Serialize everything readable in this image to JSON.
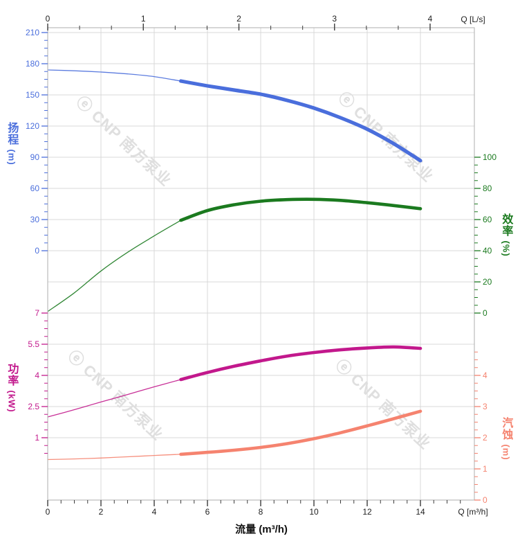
{
  "axes": {
    "top": {
      "title": "Q [L/s]",
      "tick_labels": [
        "0",
        "1",
        "2",
        "3",
        "4"
      ],
      "color": "#222222"
    },
    "bottom": {
      "title": "Q [m³/h]",
      "flow_label": "流量 (m³/h)",
      "tick_labels": [
        "0",
        "2",
        "4",
        "6",
        "8",
        "10",
        "12",
        "14"
      ],
      "color": "#222222"
    },
    "head": {
      "name": "扬程",
      "unit": "(m)",
      "tick_labels": [
        "210",
        "180",
        "150",
        "120",
        "90",
        "60",
        "30",
        "0"
      ],
      "color": "#4a6edc"
    },
    "power": {
      "name": "功率",
      "unit": "(kW)",
      "tick_labels": [
        "7",
        "5.5",
        "4",
        "2.5",
        "1"
      ],
      "color": "#c2188c"
    },
    "efficiency": {
      "name": "效率",
      "unit": "(%)",
      "tick_labels": [
        "100",
        "80",
        "60",
        "40",
        "20",
        "0"
      ],
      "color": "#1b7a1f"
    },
    "npsh": {
      "name": "汽蚀",
      "unit": "(m)",
      "tick_labels": [
        "4",
        "3",
        "2",
        "1",
        "0"
      ],
      "color": "#f5836f"
    }
  },
  "watermark": {
    "logo": "ⓔ",
    "brand": "CNP",
    "cn": "南方泵业",
    "color": "#dfdfdf"
  },
  "colors": {
    "grid": "#d9d9d9",
    "border": "#bbbbbb",
    "axis_tick": "#3a3a3a"
  },
  "chart_data": {
    "type": "line",
    "x_label": "流量 (m³/h)",
    "x2_label": "Q [L/s]",
    "x_range": [
      0,
      16
    ],
    "x2_range": [
      0,
      4.46
    ],
    "grid": true,
    "rated_flow_range_m3h": [
      5,
      14
    ],
    "series": [
      {
        "id": "head",
        "label": "扬程",
        "unit": "m",
        "color": "#4a6edc",
        "y_ticks": [
          0,
          30,
          60,
          90,
          120,
          150,
          180,
          210
        ],
        "thick_from": 5,
        "points": [
          [
            0,
            174
          ],
          [
            1,
            173.2
          ],
          [
            2,
            172
          ],
          [
            3,
            170.2
          ],
          [
            4,
            167.6
          ],
          [
            5,
            163.3
          ],
          [
            6,
            158.7
          ],
          [
            7,
            154.7
          ],
          [
            8,
            150.7
          ],
          [
            9,
            144.7
          ],
          [
            10,
            137.3
          ],
          [
            11,
            128
          ],
          [
            12,
            117
          ],
          [
            13,
            103
          ],
          [
            14,
            86.7
          ]
        ]
      },
      {
        "id": "efficiency",
        "label": "效率",
        "unit": "%",
        "color": "#1b7a1f",
        "y_ticks": [
          0,
          20,
          40,
          60,
          80,
          100
        ],
        "thick_from": 5,
        "points": [
          [
            0,
            1
          ],
          [
            1,
            13
          ],
          [
            2,
            27
          ],
          [
            3,
            39
          ],
          [
            4,
            49.5
          ],
          [
            5,
            59.5
          ],
          [
            6,
            65.8
          ],
          [
            7,
            69.5
          ],
          [
            8,
            71.8
          ],
          [
            9,
            72.8
          ],
          [
            10,
            73
          ],
          [
            11,
            72.3
          ],
          [
            12,
            70.8
          ],
          [
            13,
            69
          ],
          [
            14,
            67
          ]
        ]
      },
      {
        "id": "power",
        "label": "功率",
        "unit": "kW",
        "color": "#c2188c",
        "y_ticks": [
          1,
          2.5,
          4,
          5.5,
          7
        ],
        "thick_from": 5,
        "points": [
          [
            0,
            2
          ],
          [
            1,
            2.35
          ],
          [
            2,
            2.72
          ],
          [
            3,
            3.08
          ],
          [
            4,
            3.45
          ],
          [
            5,
            3.8
          ],
          [
            6,
            4.14
          ],
          [
            7,
            4.44
          ],
          [
            8,
            4.7
          ],
          [
            9,
            4.93
          ],
          [
            10,
            5.1
          ],
          [
            11,
            5.23
          ],
          [
            12,
            5.32
          ],
          [
            13,
            5.37
          ],
          [
            14,
            5.3
          ]
        ]
      },
      {
        "id": "npsh",
        "label": "汽蚀",
        "unit": "m",
        "color": "#f5836f",
        "y_ticks": [
          0,
          1,
          2,
          3,
          4
        ],
        "thick_from": 5,
        "points": [
          [
            0,
            1.3
          ],
          [
            1,
            1.32
          ],
          [
            2,
            1.35
          ],
          [
            3,
            1.39
          ],
          [
            4,
            1.43
          ],
          [
            5,
            1.47
          ],
          [
            6,
            1.53
          ],
          [
            7,
            1.6
          ],
          [
            8,
            1.69
          ],
          [
            9,
            1.81
          ],
          [
            10,
            1.97
          ],
          [
            11,
            2.16
          ],
          [
            12,
            2.38
          ],
          [
            13,
            2.61
          ],
          [
            14,
            2.85
          ]
        ]
      }
    ]
  }
}
